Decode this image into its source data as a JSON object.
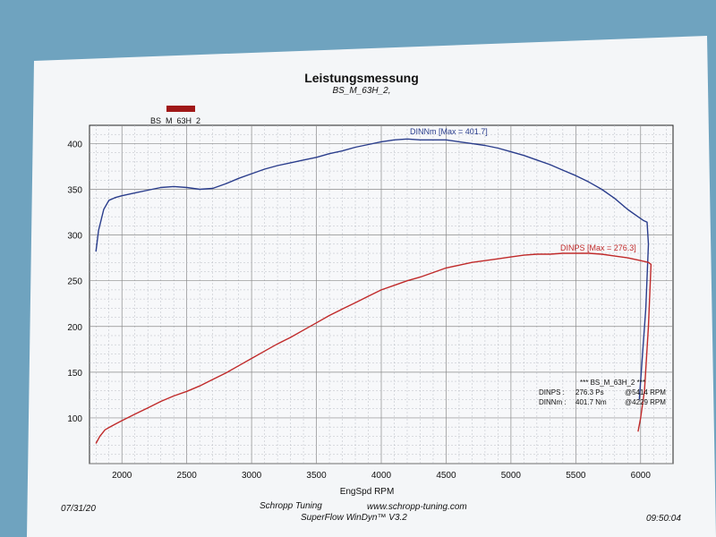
{
  "chart_data": {
    "type": "line",
    "title": "Leistungsmessung",
    "subtitle": "BS_M_63H_2,",
    "legend": {
      "label": "BS_M_63H_2",
      "color": "#a01818"
    },
    "xlabel": "EngSpd RPM",
    "xlim": [
      1750,
      6250
    ],
    "ylim": [
      50,
      420
    ],
    "x_ticks": [
      2000,
      2500,
      3000,
      3500,
      4000,
      4500,
      5000,
      5500,
      6000
    ],
    "y_ticks": [
      100,
      150,
      200,
      250,
      300,
      350,
      400
    ],
    "grid": true,
    "series": [
      {
        "name": "DINNm",
        "label": "DINNm  [Max = 401.7]",
        "color": "#2a3d8c",
        "x": [
          1800,
          1820,
          1860,
          1900,
          1950,
          2000,
          2100,
          2200,
          2300,
          2400,
          2500,
          2600,
          2700,
          2800,
          2900,
          3000,
          3100,
          3200,
          3300,
          3400,
          3500,
          3600,
          3700,
          3800,
          3900,
          4000,
          4100,
          4200,
          4300,
          4400,
          4500,
          4600,
          4700,
          4800,
          4900,
          5000,
          5100,
          5200,
          5300,
          5400,
          5500,
          5600,
          5700,
          5800,
          5900,
          5980,
          6020,
          6050,
          6060,
          6040,
          6010,
          5990
        ],
        "y": [
          282,
          305,
          328,
          338,
          341,
          343,
          346,
          349,
          352,
          353,
          352,
          350,
          351,
          356,
          362,
          367,
          372,
          376,
          379,
          382,
          385,
          389,
          392,
          396,
          399,
          402,
          404,
          405,
          404,
          404,
          404,
          402,
          400,
          398,
          395,
          391,
          387,
          382,
          377,
          371,
          365,
          358,
          350,
          340,
          328,
          320,
          316,
          314,
          290,
          220,
          160,
          120
        ]
      },
      {
        "name": "DINPS",
        "label": "DINPS  [Max = 276.3]",
        "color": "#c02a2a",
        "x": [
          1800,
          1830,
          1870,
          1920,
          2000,
          2100,
          2200,
          2300,
          2400,
          2500,
          2600,
          2700,
          2800,
          2900,
          3000,
          3100,
          3200,
          3300,
          3400,
          3500,
          3600,
          3700,
          3800,
          3900,
          4000,
          4100,
          4200,
          4300,
          4400,
          4500,
          4600,
          4700,
          4800,
          4900,
          5000,
          5100,
          5200,
          5300,
          5400,
          5500,
          5600,
          5700,
          5800,
          5900,
          6000,
          6060,
          6080,
          6060,
          6030,
          6000,
          5980
        ],
        "y": [
          72,
          80,
          87,
          91,
          97,
          104,
          111,
          118,
          124,
          129,
          135,
          142,
          149,
          157,
          165,
          173,
          181,
          188,
          196,
          204,
          212,
          219,
          226,
          233,
          240,
          245,
          250,
          254,
          259,
          264,
          267,
          270,
          272,
          274,
          276,
          278,
          279,
          279,
          280,
          280,
          280,
          279,
          277,
          275,
          272,
          270,
          268,
          200,
          130,
          100,
          85
        ]
      }
    ],
    "readout": {
      "header": "*** BS_M_63H_2 ***",
      "rows": [
        {
          "name": "DINPS :",
          "value": "276.3 Ps",
          "rpm": "@5414 RPM"
        },
        {
          "name": "DINNm :",
          "value": "401.7 Nm",
          "rpm": "@4229 RPM"
        }
      ]
    }
  },
  "footer": {
    "date": "07/31/20",
    "company": "Schropp Tuning",
    "website": "www.schropp-tuning.com",
    "software": "SuperFlow WinDyn™ V3.2",
    "time": "09:50:04"
  }
}
